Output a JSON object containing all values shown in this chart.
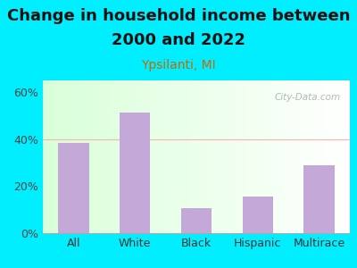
{
  "title_line1": "Change in household income between",
  "title_line2": "2000 and 2022",
  "subtitle": "Ypsilanti, MI",
  "categories": [
    "All",
    "White",
    "Black",
    "Hispanic",
    "Multirace"
  ],
  "values": [
    38.5,
    51.5,
    10.5,
    15.5,
    29.0
  ],
  "bar_color": "#c4a8d8",
  "title_fontsize": 13,
  "subtitle_fontsize": 10,
  "subtitle_color": "#cc6600",
  "tick_label_fontsize": 9,
  "ylim": [
    0,
    65
  ],
  "yticks": [
    0,
    20,
    40,
    60
  ],
  "ytick_labels": [
    "0%",
    "20%",
    "40%",
    "60%"
  ],
  "background_outer": "#00eeff",
  "grid_color": "#ffaaaa",
  "watermark": "City-Data.com",
  "title_color": "#111111"
}
